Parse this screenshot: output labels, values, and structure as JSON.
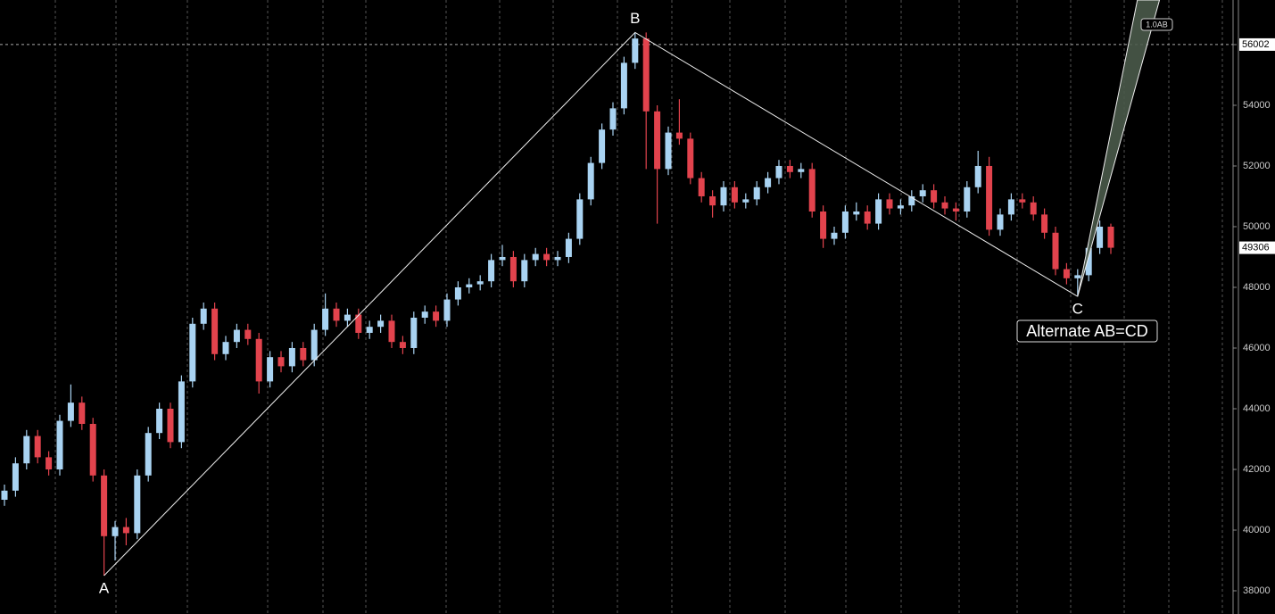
{
  "chart_data": {
    "type": "candlestick",
    "up_color": "#a9d3f2",
    "down_color": "#e2434d",
    "ylim": [
      37235,
      57470
    ],
    "yticks": [
      38000,
      40000,
      42000,
      44000,
      46000,
      48000,
      50000,
      52000,
      54000,
      56000
    ],
    "candles": [
      [
        41000,
        41500,
        40800,
        41300
      ],
      [
        41300,
        42400,
        41100,
        42200
      ],
      [
        42200,
        43300,
        42000,
        43100
      ],
      [
        43100,
        43300,
        42200,
        42400
      ],
      [
        42400,
        42600,
        41800,
        42000
      ],
      [
        42000,
        43800,
        41800,
        43600
      ],
      [
        43600,
        44800,
        43400,
        44200
      ],
      [
        44200,
        44400,
        43300,
        43500
      ],
      [
        43500,
        43700,
        41600,
        41800
      ],
      [
        41800,
        42000,
        38500,
        39800
      ],
      [
        39800,
        40300,
        39000,
        40100
      ],
      [
        40100,
        40400,
        39500,
        39900
      ],
      [
        39900,
        42000,
        39700,
        41800
      ],
      [
        41800,
        43400,
        41600,
        43200
      ],
      [
        43200,
        44200,
        43000,
        44000
      ],
      [
        44000,
        44200,
        42700,
        42900
      ],
      [
        42900,
        45100,
        42700,
        44900
      ],
      [
        44900,
        47000,
        44700,
        46800
      ],
      [
        46800,
        47500,
        46600,
        47300
      ],
      [
        47300,
        47500,
        45600,
        45800
      ],
      [
        45800,
        46400,
        45600,
        46200
      ],
      [
        46200,
        46800,
        46000,
        46600
      ],
      [
        46600,
        46800,
        46100,
        46300
      ],
      [
        46300,
        46500,
        44500,
        44900
      ],
      [
        44900,
        45900,
        44700,
        45700
      ],
      [
        45700,
        45900,
        45200,
        45400
      ],
      [
        45400,
        46200,
        45200,
        46000
      ],
      [
        46000,
        46200,
        45400,
        45600
      ],
      [
        45600,
        46800,
        45400,
        46600
      ],
      [
        46600,
        47800,
        46400,
        47300
      ],
      [
        47300,
        47500,
        46700,
        46900
      ],
      [
        46900,
        47300,
        46700,
        47100
      ],
      [
        47100,
        47300,
        46300,
        46500
      ],
      [
        46500,
        46900,
        46300,
        46700
      ],
      [
        46700,
        47100,
        46500,
        46900
      ],
      [
        46900,
        47100,
        46000,
        46200
      ],
      [
        46200,
        46400,
        45800,
        46000
      ],
      [
        46000,
        47200,
        45800,
        47000
      ],
      [
        47000,
        47400,
        46800,
        47200
      ],
      [
        47200,
        47400,
        46700,
        46900
      ],
      [
        46900,
        47800,
        46700,
        47600
      ],
      [
        47600,
        48200,
        47400,
        48000
      ],
      [
        48000,
        48300,
        47800,
        48100
      ],
      [
        48100,
        48400,
        47900,
        48200
      ],
      [
        48200,
        49100,
        48000,
        48900
      ],
      [
        48900,
        49400,
        48700,
        49000
      ],
      [
        49000,
        49200,
        48000,
        48200
      ],
      [
        48200,
        49100,
        48000,
        48900
      ],
      [
        48900,
        49300,
        48700,
        49100
      ],
      [
        49100,
        49300,
        48700,
        48900
      ],
      [
        48900,
        49200,
        48700,
        49000
      ],
      [
        49000,
        49800,
        48800,
        49600
      ],
      [
        49600,
        51100,
        49400,
        50900
      ],
      [
        50900,
        52300,
        50700,
        52100
      ],
      [
        52100,
        53400,
        51900,
        53200
      ],
      [
        53200,
        54100,
        53000,
        53900
      ],
      [
        53900,
        55600,
        53700,
        55400
      ],
      [
        55400,
        56400,
        55200,
        56200
      ],
      [
        56200,
        56400,
        51900,
        53800
      ],
      [
        53800,
        54000,
        50100,
        51900
      ],
      [
        51900,
        53300,
        51700,
        53100
      ],
      [
        53100,
        54200,
        52700,
        52900
      ],
      [
        52900,
        53100,
        51400,
        51600
      ],
      [
        51600,
        51800,
        50800,
        51000
      ],
      [
        51000,
        51200,
        50300,
        50700
      ],
      [
        50700,
        51500,
        50500,
        51300
      ],
      [
        51300,
        51500,
        50600,
        50800
      ],
      [
        50800,
        51100,
        50600,
        50900
      ],
      [
        50900,
        51500,
        50700,
        51300
      ],
      [
        51300,
        51800,
        51100,
        51600
      ],
      [
        51600,
        52200,
        51400,
        52000
      ],
      [
        52000,
        52200,
        51600,
        51800
      ],
      [
        51800,
        52100,
        51600,
        51900
      ],
      [
        51900,
        52100,
        50300,
        50500
      ],
      [
        50500,
        50700,
        49300,
        49600
      ],
      [
        49600,
        50000,
        49400,
        49800
      ],
      [
        49800,
        50700,
        49600,
        50500
      ],
      [
        50400,
        50800,
        50200,
        50500
      ],
      [
        50500,
        50700,
        49900,
        50100
      ],
      [
        50100,
        51100,
        49900,
        50900
      ],
      [
        50900,
        51100,
        50400,
        50600
      ],
      [
        50600,
        50900,
        50400,
        50700
      ],
      [
        50700,
        51200,
        50500,
        51000
      ],
      [
        51000,
        51400,
        50800,
        51200
      ],
      [
        51200,
        51400,
        50600,
        50800
      ],
      [
        50800,
        51000,
        50400,
        50600
      ],
      [
        50600,
        50800,
        50200,
        50500
      ],
      [
        50500,
        51500,
        50300,
        51300
      ],
      [
        51300,
        52500,
        51100,
        52000
      ],
      [
        52000,
        52300,
        49700,
        49900
      ],
      [
        49900,
        50600,
        49700,
        50400
      ],
      [
        50400,
        51100,
        50200,
        50900
      ],
      [
        50900,
        51100,
        50600,
        50800
      ],
      [
        50800,
        51000,
        50200,
        50400
      ],
      [
        50400,
        50600,
        49600,
        49800
      ],
      [
        49800,
        50000,
        48400,
        48600
      ],
      [
        48600,
        48800,
        48100,
        48300
      ],
      [
        48300,
        48600,
        47700,
        48400
      ],
      [
        48400,
        49500,
        48200,
        49300
      ],
      [
        49300,
        50200,
        49100,
        50000
      ],
      [
        50000,
        50100,
        49100,
        49306
      ]
    ],
    "pattern": {
      "name": "Alternate AB=CD",
      "points": [
        {
          "label": "A",
          "index": 9,
          "value": 38500
        },
        {
          "label": "B",
          "index": 57,
          "value": 56400
        },
        {
          "label": "C",
          "index": 97,
          "value": 47700
        }
      ],
      "projection": {
        "label": "1.0AB",
        "points": [
          {
            "index": 102.4,
            "value": 57470
          },
          {
            "index": 104.4,
            "value": 57470
          }
        ]
      }
    },
    "price_lines": [
      56002,
      49306
    ]
  }
}
